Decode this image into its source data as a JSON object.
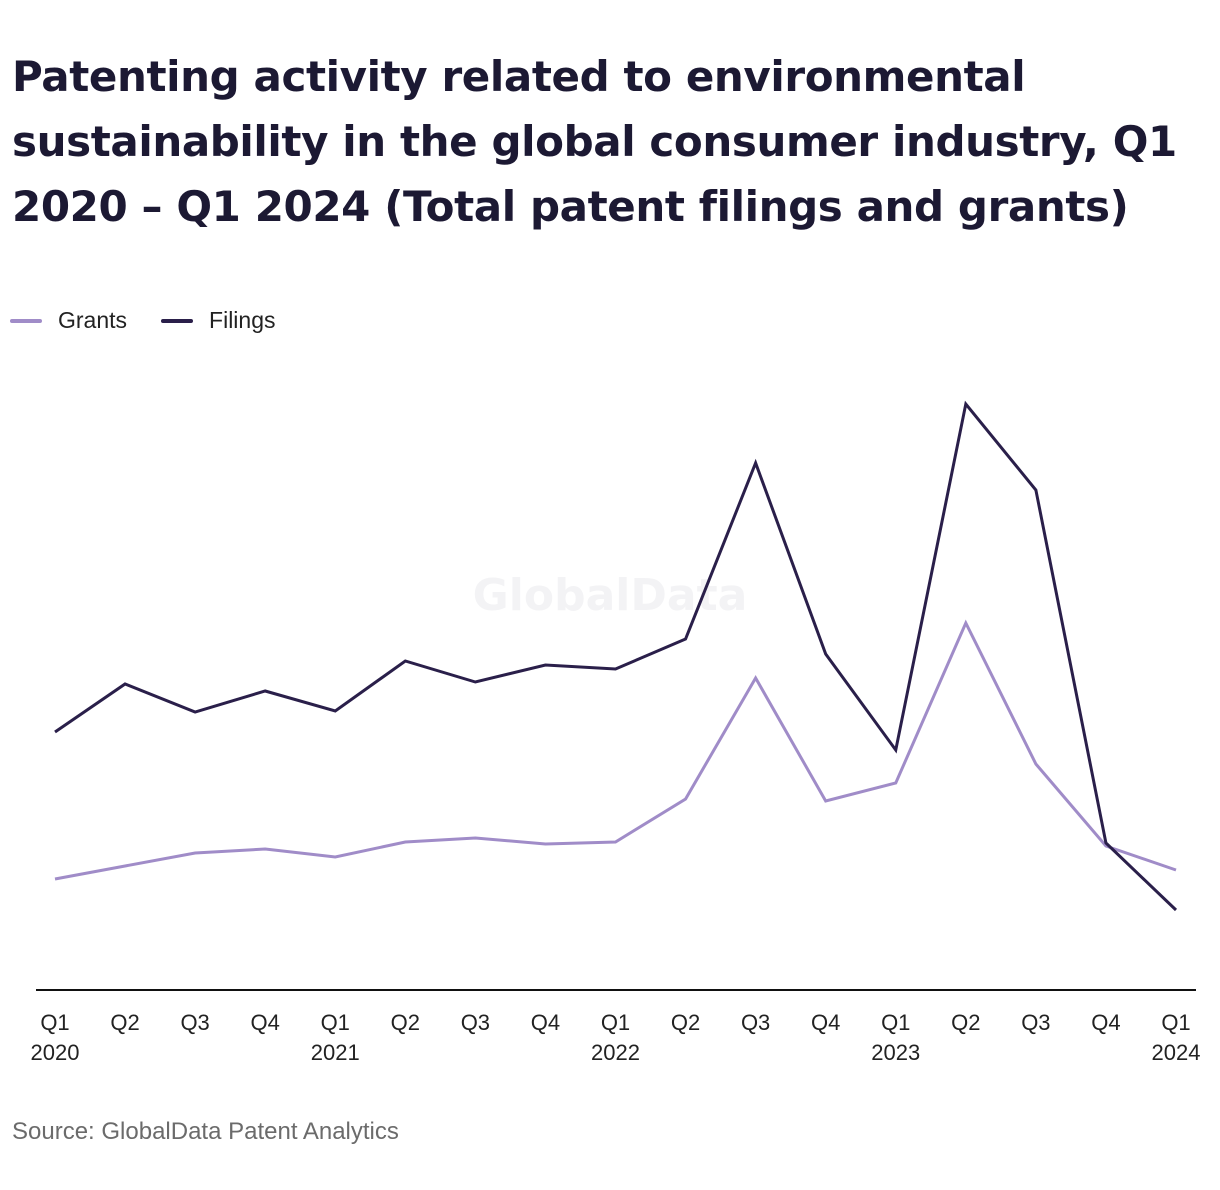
{
  "chart_data": {
    "type": "line",
    "title": "Patenting activity related to environmental sustainability in the global consumer industry, Q1 2020 – Q1 2024 (Total patent filings and grants)",
    "categories": [
      "Q1 2020",
      "Q2 2020",
      "Q3 2020",
      "Q4 2020",
      "Q1 2021",
      "Q2 2021",
      "Q3 2021",
      "Q4 2021",
      "Q1 2022",
      "Q2 2022",
      "Q3 2022",
      "Q4 2022",
      "Q1 2023",
      "Q2 2023",
      "Q3 2023",
      "Q4 2023",
      "Q1 2024"
    ],
    "tick_labels": [
      {
        "top": "Q1",
        "bottom": "2020"
      },
      {
        "top": "Q2",
        "bottom": ""
      },
      {
        "top": "Q3",
        "bottom": ""
      },
      {
        "top": "Q4",
        "bottom": ""
      },
      {
        "top": "Q1",
        "bottom": "2021"
      },
      {
        "top": "Q2",
        "bottom": ""
      },
      {
        "top": "Q3",
        "bottom": ""
      },
      {
        "top": "Q4",
        "bottom": ""
      },
      {
        "top": "Q1",
        "bottom": "2022"
      },
      {
        "top": "Q2",
        "bottom": ""
      },
      {
        "top": "Q3",
        "bottom": ""
      },
      {
        "top": "Q4",
        "bottom": ""
      },
      {
        "top": "Q1",
        "bottom": "2023"
      },
      {
        "top": "Q2",
        "bottom": ""
      },
      {
        "top": "Q3",
        "bottom": ""
      },
      {
        "top": "Q4",
        "bottom": ""
      },
      {
        "top": "Q1",
        "bottom": "2024"
      }
    ],
    "series": [
      {
        "name": "Grants",
        "color": "#a08cc8",
        "values": [
          121,
          134,
          147,
          151,
          143,
          158,
          162,
          156,
          158,
          201,
          322,
          199,
          217,
          377,
          236,
          154,
          130
        ]
      },
      {
        "name": "Filings",
        "color": "#2a1f4a",
        "values": [
          268,
          316,
          288,
          309,
          289,
          339,
          318,
          335,
          331,
          361,
          537,
          346,
          250,
          596,
          510,
          157,
          90
        ]
      }
    ],
    "ylim": [
      0,
      700
    ],
    "grid": false,
    "legend_position": "top-left"
  },
  "watermark": "GlobalData",
  "source": "Source: GlobalData Patent Analytics"
}
